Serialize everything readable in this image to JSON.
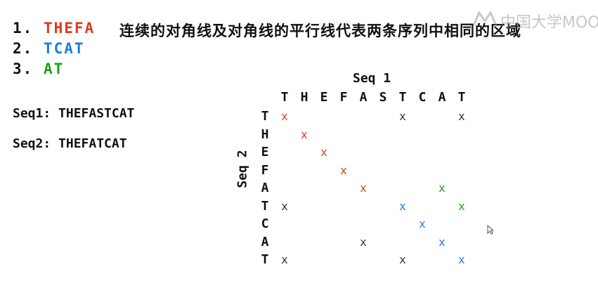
{
  "list": [
    {
      "num": "1.",
      "text": "THEFA",
      "color": "#e03a1e"
    },
    {
      "num": "2.",
      "text": "TCAT",
      "color": "#1a7de0"
    },
    {
      "num": "3.",
      "text": "AT",
      "color": "#1aa01a"
    }
  ],
  "note": "连续的对角线及对角线的平行线代表两条序列中相同的区域",
  "seq1_line": "Seq1: THEFASTCAT",
  "seq2_line": "Seq2: THEFATCAT",
  "watermark": "中国大学MOOC",
  "matrix": {
    "title_top": "Seq 1",
    "title_left": "Seq 2",
    "columns": [
      "T",
      "H",
      "E",
      "F",
      "A",
      "S",
      "T",
      "C",
      "A",
      "T"
    ],
    "rows": [
      "T",
      "H",
      "E",
      "F",
      "A",
      "T",
      "C",
      "A",
      "T"
    ],
    "mark": "x",
    "colors": {
      "black": "#333333",
      "red": "#e03a1e",
      "blue": "#1a7de0",
      "green": "#1aa01a"
    },
    "marks": [
      {
        "row": 0,
        "col": 0,
        "color": "red"
      },
      {
        "row": 0,
        "col": 6,
        "color": "black"
      },
      {
        "row": 0,
        "col": 9,
        "color": "black"
      },
      {
        "row": 1,
        "col": 1,
        "color": "red"
      },
      {
        "row": 2,
        "col": 2,
        "color": "red"
      },
      {
        "row": 3,
        "col": 3,
        "color": "red"
      },
      {
        "row": 4,
        "col": 4,
        "color": "red"
      },
      {
        "row": 4,
        "col": 8,
        "color": "green"
      },
      {
        "row": 5,
        "col": 0,
        "color": "black"
      },
      {
        "row": 5,
        "col": 6,
        "color": "blue"
      },
      {
        "row": 5,
        "col": 9,
        "color": "green"
      },
      {
        "row": 6,
        "col": 7,
        "color": "blue"
      },
      {
        "row": 7,
        "col": 4,
        "color": "black"
      },
      {
        "row": 7,
        "col": 8,
        "color": "blue"
      },
      {
        "row": 8,
        "col": 0,
        "color": "black"
      },
      {
        "row": 8,
        "col": 6,
        "color": "black"
      },
      {
        "row": 8,
        "col": 9,
        "color": "blue"
      }
    ]
  }
}
